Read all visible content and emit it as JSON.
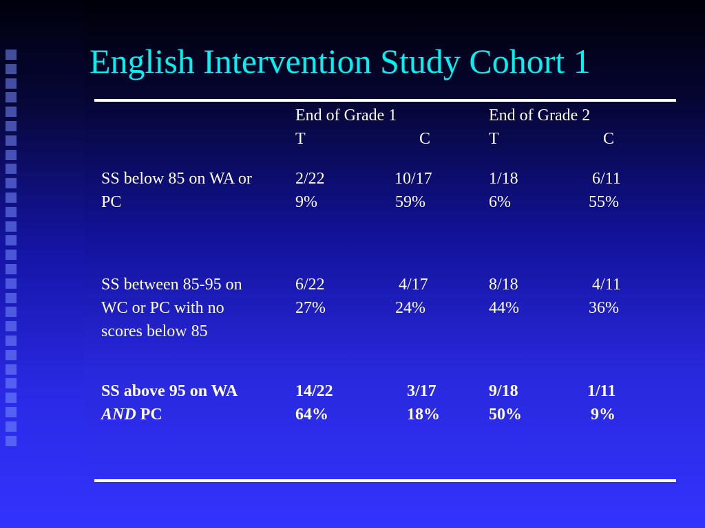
{
  "title": "English Intervention Study Cohort 1",
  "columns": {
    "grade1": {
      "header": "End of Grade 1",
      "t": "T",
      "c": "C"
    },
    "grade2": {
      "header": "End of Grade 2",
      "t": "T",
      "c": "C"
    }
  },
  "rows": [
    {
      "label_lines": [
        "SS below 85 on WA or",
        "PC"
      ],
      "g1_t": {
        "ratio": "2/22",
        "pct": "9%"
      },
      "g1_c": {
        "ratio": "10/17",
        "pct": "59%"
      },
      "g2_t": {
        "ratio": "1/18",
        "pct": "6%"
      },
      "g2_c": {
        "ratio": "6/11",
        "pct": "55%"
      }
    },
    {
      "label_lines": [
        "SS between 85-95 on",
        "WC or PC with no",
        "scores below 85"
      ],
      "g1_t": {
        "ratio": "6/22",
        "pct": "27%"
      },
      "g1_c": {
        "ratio": "4/17",
        "pct": "24%"
      },
      "g2_t": {
        "ratio": "8/18",
        "pct": "44%"
      },
      "g2_c": {
        "ratio": "4/11",
        "pct": "36%"
      }
    },
    {
      "label_line1": "SS above 95 on WA",
      "label_line2_italic": "AND",
      "label_line2_rest": " PC",
      "g1_t": {
        "ratio": "14/22",
        "pct": "64%"
      },
      "g1_c": {
        "ratio": "3/17",
        "pct": "18%"
      },
      "g2_t": {
        "ratio": "9/18",
        "pct": "50%"
      },
      "g2_c": {
        "ratio": "1/11",
        "pct": "9%"
      }
    }
  ]
}
